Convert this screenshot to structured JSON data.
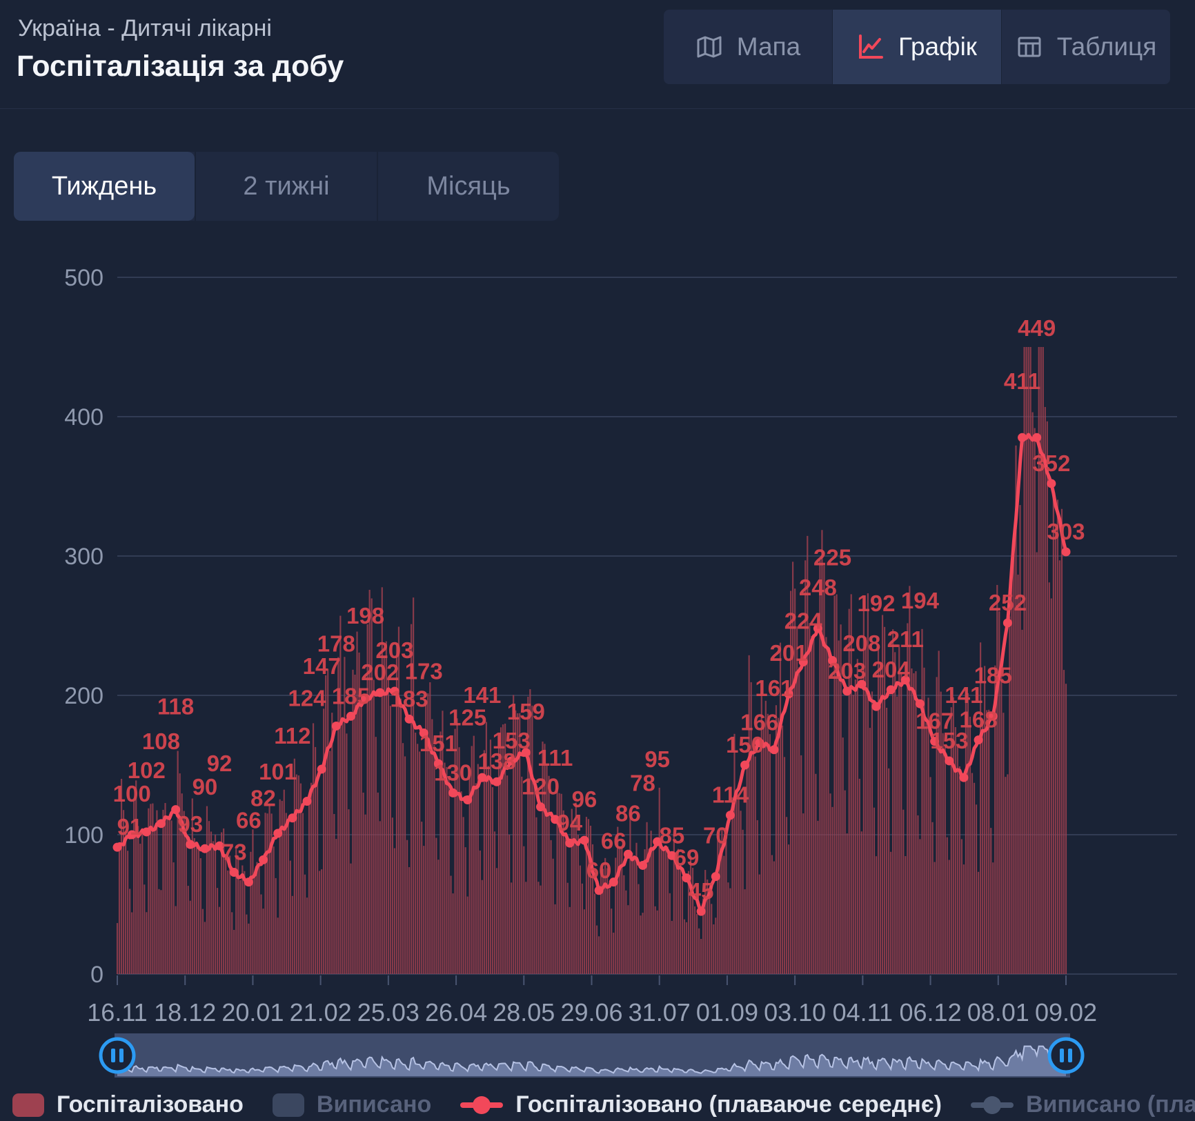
{
  "header": {
    "subtitle": "Україна - Дитячі лікарні",
    "title": "Госпіталізація за добу"
  },
  "view_tabs": [
    {
      "id": "map",
      "label": "Мапа",
      "icon": "map-icon",
      "active": false
    },
    {
      "id": "chart",
      "label": "Графік",
      "icon": "chart-icon",
      "active": true
    },
    {
      "id": "table",
      "label": "Таблиця",
      "icon": "table-icon",
      "active": false
    }
  ],
  "range_tabs": [
    {
      "id": "week",
      "label": "Тиждень",
      "active": true
    },
    {
      "id": "2weeks",
      "label": "2 тижні",
      "active": false
    },
    {
      "id": "month",
      "label": "Місяць",
      "active": false
    }
  ],
  "legend": [
    {
      "label": "Госпіталізовано",
      "marker": "bar",
      "color": "#9e4150",
      "active": true
    },
    {
      "label": "Виписано",
      "marker": "bar",
      "color": "#3b4760",
      "active": false
    },
    {
      "label": "Госпіталізовано (плаваюче середнє)",
      "marker": "line",
      "color": "#f2485a",
      "active": true
    },
    {
      "label": "Виписано (плаваюче середнє)",
      "marker": "line",
      "color": "#49566f",
      "active": false
    }
  ],
  "chart_data": {
    "type": "bar",
    "title": "Госпіталізація за добу",
    "ylim": [
      0,
      500
    ],
    "y_ticks": [
      0,
      100,
      200,
      300,
      400,
      500
    ],
    "x_ticks": [
      "16.11",
      "18.12",
      "20.01",
      "21.02",
      "25.03",
      "26.04",
      "28.05",
      "29.06",
      "31.07",
      "01.09",
      "03.10",
      "04.11",
      "06.12",
      "08.01",
      "09.02"
    ],
    "grid": true,
    "legend_position": "bottom",
    "series": [
      {
        "name": "Госпіталізовано",
        "type": "column",
        "color": "#a03f4f",
        "visible": true
      },
      {
        "name": "Виписано",
        "type": "column",
        "color": "#3b4760",
        "visible": false
      },
      {
        "name": "Госпіталізовано (плаваюче середнє)",
        "type": "line",
        "color": "#f2485a",
        "visible": true,
        "interval_days": 7,
        "values": [
          91,
          100,
          102,
          108,
          118,
          93,
          90,
          92,
          73,
          66,
          82,
          101,
          112,
          124,
          147,
          178,
          185,
          198,
          202,
          203,
          183,
          173,
          151,
          130,
          125,
          141,
          138,
          153,
          159,
          120,
          111,
          94,
          96,
          60,
          66,
          86,
          78,
          95,
          85,
          69,
          45,
          70,
          114,
          150,
          166,
          161,
          201,
          224,
          248,
          225,
          203,
          208,
          192,
          204,
          211,
          194,
          167,
          153,
          141,
          168,
          185,
          252,
          411,
          449,
          352,
          303
        ]
      },
      {
        "name": "Виписано (плаваюче середнє)",
        "type": "line",
        "color": "#49566f",
        "visible": false
      }
    ]
  },
  "navigator": {
    "handle_icon": "pause-icon"
  }
}
